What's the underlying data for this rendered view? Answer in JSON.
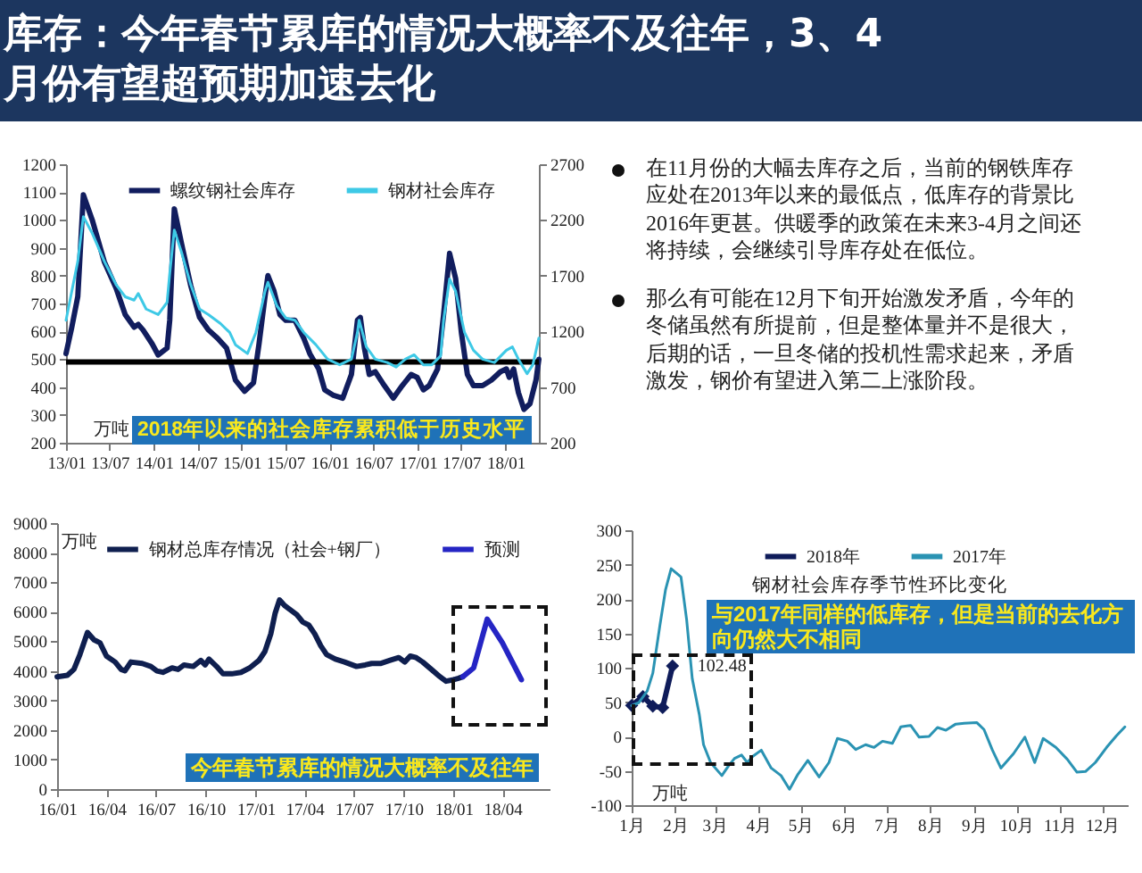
{
  "chart_data": [
    {
      "type": "other",
      "title": "库存：今年春节累库的情况大概率不及往年，3、4月份有望超预期加速去化"
    },
    {
      "type": "line",
      "ylabel": "万吨",
      "annotations": [
        "2018年以来的社会库存累积低于历史水平"
      ],
      "legend": "top",
      "xlim": [
        "2013-01-01",
        "2018-05-20"
      ],
      "xticks": [
        {
          "value": "2013-01",
          "label": "13/01"
        },
        {
          "value": "2013-07",
          "label": "13/07"
        },
        {
          "value": "2014-01",
          "label": "14/01"
        },
        {
          "value": "2014-07",
          "label": "14/07"
        },
        {
          "value": "2015-01",
          "label": "15/01"
        },
        {
          "value": "2015-07",
          "label": "15/07"
        },
        {
          "value": "2016-01",
          "label": "16/01"
        },
        {
          "value": "2016-07",
          "label": "16/07"
        },
        {
          "value": "2017-01",
          "label": "17/01"
        },
        {
          "value": "2017-07",
          "label": "17/07"
        },
        {
          "value": "2018-01",
          "label": "18/01"
        }
      ],
      "ylim": [
        200,
        1200
      ],
      "yticks": [
        200,
        300,
        400,
        500,
        600,
        700,
        800,
        900,
        1000,
        1100,
        1200
      ],
      "y2lim": [
        200,
        2700
      ],
      "y2ticks": [
        200,
        700,
        1200,
        1700,
        2200,
        2700
      ],
      "ref_lines": [
        {
          "axis": "y",
          "value": 490,
          "color": "#000000"
        }
      ],
      "series": [
        {
          "name": "螺纹钢社会库存",
          "color": "#111d5e",
          "x": [
            "2013-01-01",
            "2013-01-25",
            "2013-02-19",
            "2013-03-14",
            "2013-04-20",
            "2013-06-09",
            "2013-07-28",
            "2013-09-04",
            "2013-10-11",
            "2013-10-28",
            "2013-11-17",
            "2013-12-25",
            "2014-01-19",
            "2014-02-25",
            "2014-03-08",
            "2014-03-27",
            "2014-04-26",
            "2014-06-03",
            "2014-07-10",
            "2014-08-16",
            "2014-09-23",
            "2014-10-30",
            "2014-11-12",
            "2014-12-06",
            "2015-01-13",
            "2015-02-19",
            "2015-03-14",
            "2015-04-08",
            "2015-04-20",
            "2015-05-15",
            "2015-06-09",
            "2015-07-03",
            "2015-08-10",
            "2015-09-16",
            "2015-10-11",
            "2015-11-17",
            "2015-12-12",
            "2016-01-18",
            "2016-02-25",
            "2016-04-01",
            "2016-04-26",
            "2016-05-08",
            "2016-05-25",
            "2016-06-14",
            "2016-07-09",
            "2016-08-16",
            "2016-09-22",
            "2016-10-29",
            "2016-12-05",
            "2016-12-30",
            "2017-01-25",
            "2017-02-18",
            "2017-03-25",
            "2017-04-19",
            "2017-05-14",
            "2017-06-08",
            "2017-07-02",
            "2017-07-27",
            "2017-08-21",
            "2017-09-28",
            "2017-11-04",
            "2017-12-11",
            "2018-01-05",
            "2018-01-17",
            "2018-02-04",
            "2018-02-24",
            "2018-03-19",
            "2018-04-13",
            "2018-05-08",
            "2018-05-20"
          ],
          "values": [
            520,
            615,
            725,
            1090,
            1000,
            850,
            755,
            660,
            615,
            625,
            605,
            555,
            515,
            540,
            640,
            1040,
            915,
            765,
            650,
            605,
            575,
            540,
            500,
            425,
            385,
            415,
            555,
            725,
            800,
            745,
            660,
            640,
            640,
            575,
            520,
            465,
            390,
            370,
            360,
            445,
            640,
            650,
            540,
            445,
            455,
            405,
            360,
            405,
            445,
            435,
            390,
            405,
            465,
            660,
            880,
            790,
            595,
            445,
            405,
            405,
            425,
            455,
            465,
            435,
            465,
            380,
            320,
            340,
            425,
            500
          ]
        },
        {
          "name": "钢材社会库存",
          "color": "#3ec9e6",
          "axis": "y2",
          "x": [
            "2013-01-01",
            "2013-02-19",
            "2013-03-14",
            "2013-04-20",
            "2013-06-09",
            "2013-07-28",
            "2013-09-04",
            "2013-10-11",
            "2013-10-28",
            "2013-11-30",
            "2014-01-19",
            "2014-02-25",
            "2014-03-08",
            "2014-03-27",
            "2014-04-26",
            "2014-06-03",
            "2014-07-10",
            "2014-08-16",
            "2014-10-05",
            "2014-11-12",
            "2014-12-06",
            "2015-01-25",
            "2015-03-01",
            "2015-04-08",
            "2015-04-20",
            "2015-05-27",
            "2015-07-03",
            "2015-08-10",
            "2015-09-16",
            "2015-11-05",
            "2015-12-24",
            "2016-02-12",
            "2016-04-01",
            "2016-04-26",
            "2016-05-03",
            "2016-06-02",
            "2016-07-09",
            "2016-08-28",
            "2016-10-04",
            "2016-11-11",
            "2016-12-18",
            "2017-01-25",
            "2017-03-01",
            "2017-04-07",
            "2017-04-19",
            "2017-05-14",
            "2017-06-08",
            "2017-07-15",
            "2017-08-21",
            "2017-09-28",
            "2017-11-16",
            "2018-01-05",
            "2018-01-30",
            "2018-02-24",
            "2018-04-01",
            "2018-04-25",
            "2018-05-20"
          ],
          "values": [
            1300,
            1830,
            2230,
            2080,
            1830,
            1620,
            1510,
            1480,
            1540,
            1400,
            1350,
            1460,
            1720,
            2110,
            1910,
            1620,
            1400,
            1350,
            1270,
            1190,
            1080,
            1000,
            1190,
            1560,
            1640,
            1430,
            1320,
            1300,
            1190,
            1080,
            950,
            900,
            950,
            1190,
            1300,
            1060,
            950,
            920,
            880,
            950,
            990,
            900,
            900,
            980,
            1300,
            1670,
            1560,
            1190,
            1030,
            950,
            920,
            1030,
            1060,
            950,
            820,
            900,
            1140
          ]
        }
      ]
    },
    {
      "type": "other",
      "annotations": [
        "在11月份的大幅去库存之后，当前的钢铁库存应处在2013年以来的最低点，低库存的背景比2016年更甚。供暖季的政策在未来3-4月之间还将持续，会继续引导库存处在低位。",
        "那么有可能在12月下旬开始激发矛盾，今年的冬储虽然有所提前，但是整体量并不是很大，后期的话，一旦冬储的投机性需求起来，矛盾激发，钢价有望进入第二上涨阶段。"
      ]
    },
    {
      "type": "line",
      "ylabel": "万吨",
      "annotations": [
        "今年春节累库的情况大概率不及往年"
      ],
      "legend": "top",
      "xlim": [
        "2016-01-01",
        "2018-06-27"
      ],
      "xticks": [
        {
          "value": "2016-01",
          "label": "16/01"
        },
        {
          "value": "2016-04",
          "label": "16/04"
        },
        {
          "value": "2016-07",
          "label": "16/07"
        },
        {
          "value": "2016-10",
          "label": "16/10"
        },
        {
          "value": "2017-01",
          "label": "17/01"
        },
        {
          "value": "2017-04",
          "label": "17/04"
        },
        {
          "value": "2017-07",
          "label": "17/07"
        },
        {
          "value": "2017-10",
          "label": "17/10"
        },
        {
          "value": "2018-01",
          "label": "18/01"
        },
        {
          "value": "2018-04",
          "label": "18/04"
        }
      ],
      "ylim": [
        0,
        9000
      ],
      "yticks": [
        0,
        1000,
        2000,
        3000,
        4000,
        5000,
        6000,
        7000,
        8000,
        9000
      ],
      "series": [
        {
          "name": "钢材总库存情况（社会+钢厂）",
          "color": "#0f1f4f",
          "x": [
            "2016-01-01",
            "2016-01-20",
            "2016-02-01",
            "2016-02-12",
            "2016-02-26",
            "2016-03-09",
            "2016-03-20",
            "2016-04-01",
            "2016-04-17",
            "2016-04-28",
            "2016-05-05",
            "2016-05-16",
            "2016-06-06",
            "2016-06-22",
            "2016-07-03",
            "2016-07-14",
            "2016-07-31",
            "2016-08-11",
            "2016-08-22",
            "2016-09-08",
            "2016-09-22",
            "2016-09-30",
            "2016-10-07",
            "2016-10-21",
            "2016-11-02",
            "2016-11-18",
            "2016-12-05",
            "2016-12-21",
            "2017-01-07",
            "2017-01-18",
            "2017-01-29",
            "2017-02-06",
            "2017-02-14",
            "2017-02-24",
            "2017-03-07",
            "2017-03-18",
            "2017-03-29",
            "2017-04-09",
            "2017-04-20",
            "2017-05-01",
            "2017-05-12",
            "2017-05-28",
            "2017-06-14",
            "2017-07-06",
            "2017-07-22",
            "2017-08-03",
            "2017-08-19",
            "2017-09-05",
            "2017-09-22",
            "2017-10-03",
            "2017-10-13",
            "2017-10-24",
            "2017-11-05",
            "2017-11-21",
            "2017-12-07",
            "2017-12-18",
            "2018-01-01",
            "2018-01-10",
            "2018-01-18"
          ],
          "values": [
            3800,
            3850,
            4050,
            4550,
            5300,
            5050,
            4950,
            4500,
            4300,
            4050,
            4000,
            4300,
            4250,
            4150,
            4000,
            3950,
            4100,
            4050,
            4200,
            4150,
            4350,
            4200,
            4400,
            4150,
            3900,
            3900,
            3950,
            4100,
            4350,
            4650,
            5250,
            5950,
            6400,
            6200,
            6050,
            5900,
            5650,
            5550,
            5250,
            4850,
            4550,
            4400,
            4300,
            4150,
            4200,
            4250,
            4250,
            4350,
            4450,
            4300,
            4500,
            4450,
            4300,
            4050,
            3800,
            3650,
            3700,
            3750,
            3800
          ]
        },
        {
          "name": "预测",
          "color": "#2525c4",
          "x": [
            "2018-01-18",
            "2018-02-07",
            "2018-03-04",
            "2018-04-01",
            "2018-05-06"
          ],
          "values": [
            3800,
            4100,
            5750,
            4950,
            3700
          ]
        }
      ]
    },
    {
      "type": "line",
      "title": "钢材社会库存季节性环比变化",
      "ylabel": "万吨",
      "annotations": [
        "与2017年同样的低库存，但是当前的去化方向仍然大不相同"
      ],
      "legend": "top",
      "xlim": [
        "--01-01",
        "--12-19"
      ],
      "xticks": [
        {
          "value": "--01-01",
          "label": "1月"
        },
        {
          "value": "--02-01",
          "label": "2月"
        },
        {
          "value": "--03-01",
          "label": "3月"
        },
        {
          "value": "--04-01",
          "label": "4月"
        },
        {
          "value": "--05-01",
          "label": "5月"
        },
        {
          "value": "--06-01",
          "label": "6月"
        },
        {
          "value": "--07-01",
          "label": "7月"
        },
        {
          "value": "--08-01",
          "label": "8月"
        },
        {
          "value": "--09-01",
          "label": "9月"
        },
        {
          "value": "--10-01",
          "label": "10月"
        },
        {
          "value": "--11-01",
          "label": "11月"
        },
        {
          "value": "--12-01",
          "label": "12月"
        }
      ],
      "ylim": [
        -100,
        300
      ],
      "yticks": [
        -100,
        -50,
        0,
        50,
        100,
        150,
        200,
        250,
        300
      ],
      "series": [
        {
          "name": "2018年",
          "color": "#0f1c5a",
          "marker": "diamond",
          "x": [
            "--01-01",
            "--01-09",
            "--01-16",
            "--01-23",
            "--01-30"
          ],
          "values": [
            45,
            58,
            44,
            42,
            102.48
          ],
          "value_labels": [
            null,
            null,
            null,
            null,
            "102.48"
          ]
        },
        {
          "name": "2017年",
          "color": "#2a93b3",
          "x": [
            "--01-01",
            "--01-06",
            "--01-12",
            "--01-16",
            "--01-21",
            "--01-25",
            "--01-29",
            "--02-05",
            "--02-09",
            "--02-13",
            "--02-18",
            "--02-21",
            "--02-26",
            "--03-06",
            "--03-11",
            "--03-15",
            "--03-20",
            "--03-24",
            "--03-28",
            "--04-03",
            "--04-10",
            "--04-17",
            "--04-23",
            "--04-29",
            "--05-06",
            "--05-14",
            "--05-21",
            "--05-27",
            "--06-03",
            "--06-09",
            "--06-16",
            "--06-22",
            "--06-28",
            "--07-05",
            "--07-11",
            "--07-18",
            "--07-24",
            "--07-31",
            "--08-06",
            "--08-12",
            "--08-19",
            "--08-25",
            "--09-03",
            "--09-08",
            "--09-14",
            "--09-20",
            "--09-29",
            "--10-07",
            "--10-14",
            "--10-20",
            "--10-29",
            "--11-06",
            "--11-13",
            "--11-19",
            "--11-26",
            "--12-04",
            "--12-11",
            "--12-17"
          ],
          "values": [
            45,
            49,
            66,
            92,
            161,
            213,
            244,
            232,
            170,
            84,
            32,
            -12,
            -38,
            -57,
            -42,
            -32,
            -27,
            -38,
            -29,
            -20,
            -46,
            -57,
            -77,
            -55,
            -35,
            -59,
            -38,
            -3,
            -7,
            -19,
            -12,
            -16,
            -7,
            -10,
            14,
            16,
            -1,
            0,
            13,
            9,
            18,
            19,
            20,
            10,
            -20,
            -46,
            -25,
            -1,
            -38,
            -3,
            -16,
            -33,
            -52,
            -51,
            -38,
            -16,
            1,
            14
          ]
        }
      ]
    }
  ]
}
